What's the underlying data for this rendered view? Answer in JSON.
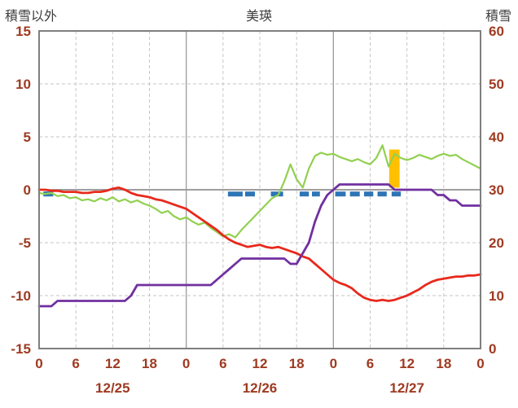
{
  "chart_data": {
    "type": "line",
    "title": "美瑛",
    "left_axis": {
      "label": "積雪以外",
      "min": -15,
      "max": 15,
      "ticks": [
        15,
        10,
        5,
        0,
        -5,
        -10,
        -15
      ]
    },
    "right_axis": {
      "label": "積雪",
      "min": 0,
      "max": 60,
      "ticks": [
        60,
        50,
        40,
        30,
        20,
        10,
        0
      ]
    },
    "x_axis": {
      "hours_total": 72,
      "tick_interval": 6,
      "tick_labels": [
        "0",
        "6",
        "12",
        "18",
        "0",
        "6",
        "12",
        "18",
        "0",
        "6",
        "12",
        "18",
        "0"
      ],
      "day_labels": [
        {
          "label": "12/25",
          "hour": 12
        },
        {
          "label": "12/26",
          "hour": 36
        },
        {
          "label": "12/27",
          "hour": 60
        }
      ],
      "day_boundaries": [
        24,
        48
      ]
    },
    "series": [
      {
        "name": "green-series",
        "axis": "left",
        "color": "#92d050",
        "width": 2.2,
        "values": [
          -0.3,
          -0.4,
          -0.3,
          -0.6,
          -0.5,
          -0.8,
          -0.7,
          -1,
          -0.9,
          -1.1,
          -0.8,
          -1,
          -0.7,
          -1.1,
          -0.9,
          -1.2,
          -1,
          -1.3,
          -1.5,
          -1.8,
          -2.2,
          -2,
          -2.5,
          -2.8,
          -2.6,
          -3,
          -3.3,
          -3.1,
          -3.6,
          -4,
          -4.4,
          -4.2,
          -4.5,
          -3.8,
          -3.2,
          -2.6,
          -2,
          -1.4,
          -0.8,
          -0.5,
          0.8,
          2.4,
          1,
          0.2,
          2,
          3.2,
          3.5,
          3.3,
          3.4,
          3.1,
          2.9,
          2.7,
          2.9,
          2.6,
          2.4,
          3,
          4.2,
          2.2,
          3.4,
          3,
          2.8,
          3,
          3.3,
          3.1,
          2.9,
          3.2,
          3.4,
          3.2,
          3.3,
          2.9,
          2.6,
          2.3,
          2
        ]
      },
      {
        "name": "temperature",
        "axis": "left",
        "color": "#e8291c",
        "width": 2.8,
        "values": [
          0,
          0,
          -0.1,
          -0.1,
          -0.2,
          -0.2,
          -0.2,
          -0.3,
          -0.3,
          -0.2,
          -0.2,
          -0.1,
          0.1,
          0.2,
          0,
          -0.3,
          -0.5,
          -0.6,
          -0.7,
          -0.9,
          -1,
          -1.2,
          -1.4,
          -1.6,
          -1.8,
          -2.2,
          -2.6,
          -3,
          -3.4,
          -3.8,
          -4.3,
          -4.7,
          -5,
          -5.2,
          -5.4,
          -5.3,
          -5.2,
          -5.4,
          -5.5,
          -5.4,
          -5.6,
          -5.8,
          -6,
          -6.3,
          -6.5,
          -7,
          -7.5,
          -8,
          -8.5,
          -8.8,
          -9,
          -9.3,
          -9.8,
          -10.2,
          -10.4,
          -10.5,
          -10.4,
          -10.5,
          -10.4,
          -10.2,
          -10,
          -9.7,
          -9.4,
          -9,
          -8.7,
          -8.5,
          -8.4,
          -8.3,
          -8.2,
          -8.2,
          -8.1,
          -8.1,
          -8
        ]
      },
      {
        "name": "snow-depth",
        "axis": "right",
        "color": "#7030a0",
        "width": 2.8,
        "values": [
          8,
          8,
          8,
          9,
          9,
          9,
          9,
          9,
          9,
          9,
          9,
          9,
          9,
          9,
          9,
          10,
          12,
          12,
          12,
          12,
          12,
          12,
          12,
          12,
          12,
          12,
          12,
          12,
          12,
          13,
          14,
          15,
          16,
          17,
          17,
          17,
          17,
          17,
          17,
          17,
          17,
          16,
          16,
          18,
          20,
          24,
          27,
          29,
          30,
          31,
          31,
          31,
          31,
          31,
          31,
          31,
          31,
          31,
          30,
          30,
          30,
          30,
          30,
          30,
          30,
          29,
          29,
          28,
          28,
          27,
          27,
          27,
          27
        ]
      }
    ],
    "precip_segments": {
      "color": "#2e75b6",
      "y_value": -0.4,
      "thickness": 6,
      "segments": [
        [
          0.7,
          2.3
        ],
        [
          30.8,
          33.2
        ],
        [
          33.6,
          35.2
        ],
        [
          37.8,
          39.8
        ],
        [
          42.5,
          44
        ],
        [
          44.5,
          45.8
        ],
        [
          48.3,
          50
        ],
        [
          50.7,
          52.3
        ],
        [
          53,
          54.5
        ],
        [
          55.2,
          56.7
        ],
        [
          57.5,
          59
        ]
      ]
    },
    "snowfall_bar": {
      "color": "#ffc000",
      "start_hour": 57.1,
      "end_hour": 58.8,
      "from_value": 0.2,
      "to_value": 3.8,
      "axis": "left"
    },
    "colors": {
      "axis_text": "#9e3a21",
      "title_text": "#3d3d3d",
      "grid": "#c6c6c6",
      "day_line": "#9a9a9a",
      "zero_line": "#7f7f7f",
      "border": "#7f7f7f",
      "background": "#ffffff"
    },
    "grid": "dashed",
    "legend_position": "none"
  }
}
